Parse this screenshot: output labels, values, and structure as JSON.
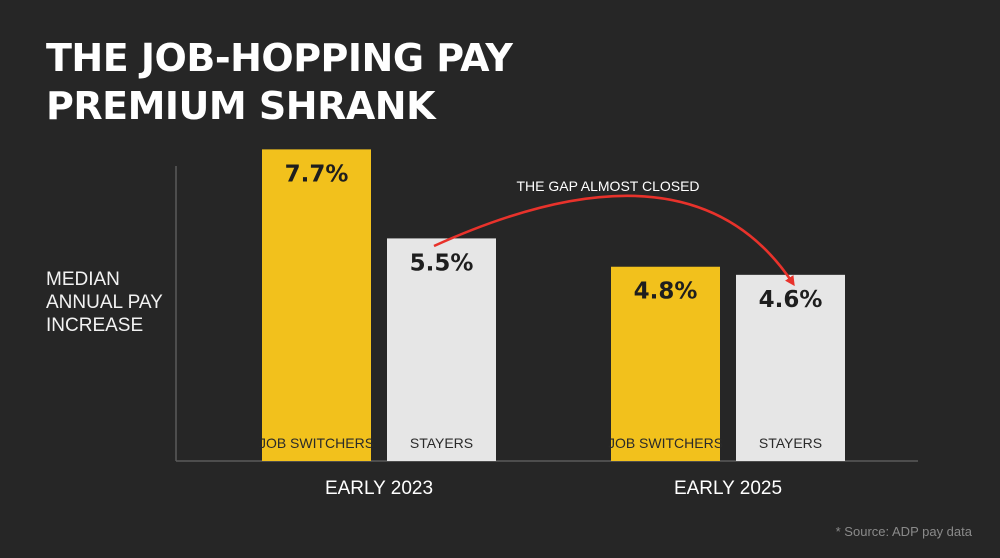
{
  "header": {
    "title_line1": "THE JOB-HOPPING PAY",
    "title_line2": "PREMIUM SHRANK"
  },
  "footer": {
    "source": "* Source: ADP pay data"
  },
  "chart_data": {
    "type": "bar",
    "title": "THE JOB-HOPPING PAY PREMIUM SHRANK",
    "ylabel_lines": [
      "MEDIAN",
      "ANNUAL PAY",
      "INCREASE"
    ],
    "categories": [
      "EARLY 2023",
      "EARLY 2025"
    ],
    "series": [
      {
        "name": "JOB SWITCHERS",
        "color": "#f2c11c",
        "values": [
          7.7,
          4.8
        ],
        "labels": [
          "7.7%",
          "4.8%"
        ]
      },
      {
        "name": "STAYERS",
        "color": "#e6e6e6",
        "values": [
          5.5,
          4.6
        ],
        "labels": [
          "5.5%",
          "4.6%"
        ]
      }
    ],
    "ylim": [
      0,
      8.5
    ],
    "grid": false,
    "legend": "none",
    "annotation": {
      "text": "THE GAP ALMOST CLOSED",
      "color": "#e8322b"
    }
  }
}
